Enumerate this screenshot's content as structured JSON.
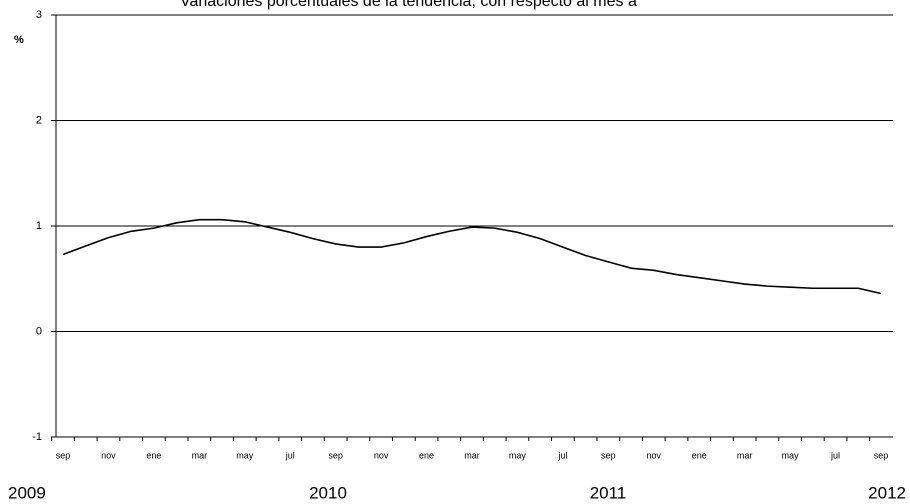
{
  "chart_data": {
    "type": "line",
    "title": "Variaciones porcentuales de la tendencia, con respecto al mes a",
    "y_label": "%",
    "categories": [
      "sep",
      null,
      "nov",
      null,
      "ene",
      null,
      "mar",
      null,
      "may",
      null,
      "jul",
      null,
      "sep",
      null,
      "nov",
      null,
      "ene",
      null,
      "mar",
      null,
      "may",
      null,
      "jul",
      null,
      "sep",
      null,
      "nov",
      null,
      "ene",
      null,
      "mar",
      null,
      "may",
      null,
      "jul",
      null,
      "sep"
    ],
    "years": [
      "2009",
      "2010",
      "2011",
      "2012"
    ],
    "series": [
      {
        "name": "tendencia",
        "color": "#000000",
        "values": [
          0.73,
          0.81,
          0.89,
          0.95,
          0.98,
          1.03,
          1.06,
          1.06,
          1.04,
          0.99,
          0.94,
          0.88,
          0.83,
          0.8,
          0.8,
          0.84,
          0.9,
          0.95,
          0.99,
          0.98,
          0.94,
          0.88,
          0.8,
          0.72,
          0.66,
          0.6,
          0.58,
          0.54,
          0.51,
          0.48,
          0.45,
          0.43,
          0.42,
          0.41,
          0.41,
          0.41,
          0.36
        ]
      }
    ],
    "ylim": [
      -1,
      3
    ],
    "yticks": [
      -1,
      0,
      1,
      2,
      3
    ],
    "grid": true
  }
}
